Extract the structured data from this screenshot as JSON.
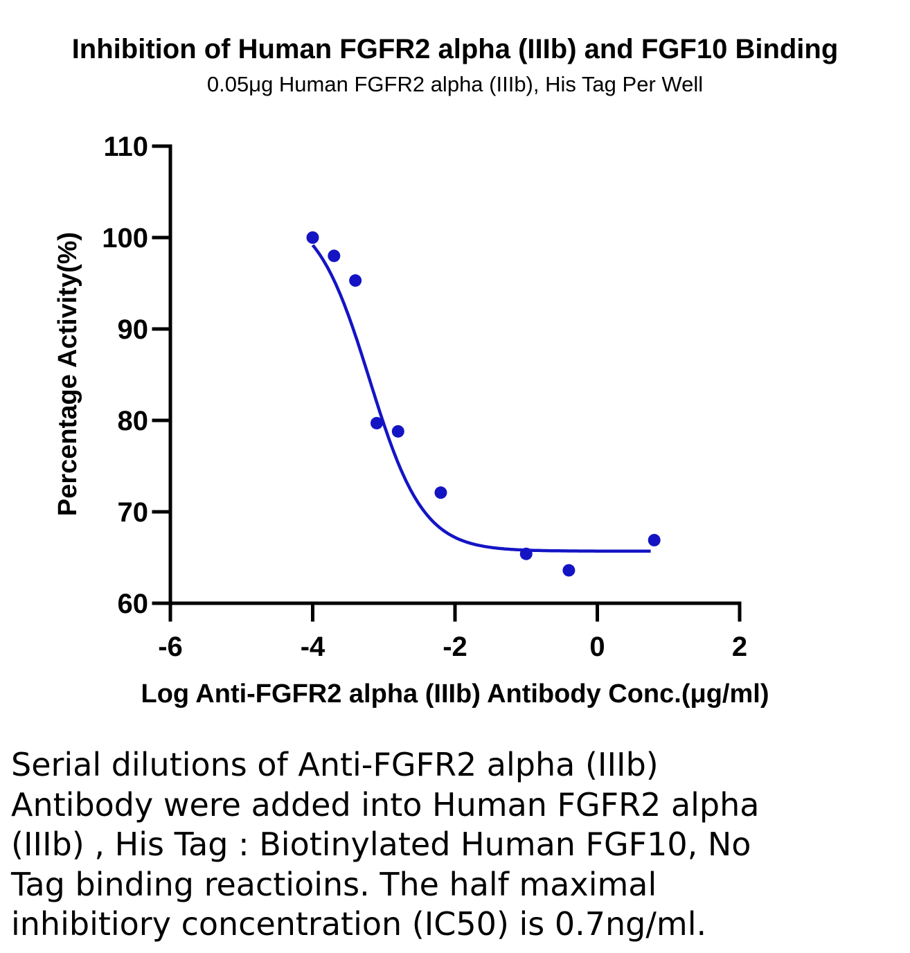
{
  "chart_data": {
    "type": "scatter",
    "title": "Inhibition of Human FGFR2 alpha (IIIb) and  FGF10 Binding",
    "subtitle": "0.05μg Human FGFR2 alpha (IIIb), His Tag Per Well",
    "xlabel": "Log Anti-FGFR2 alpha (IIIb) Antibody Conc.(μg/ml)",
    "ylabel": "Percentage Activity(%)",
    "xlim": [
      -6,
      2
    ],
    "ylim": [
      60,
      110
    ],
    "xticks": [
      -6,
      -4,
      -2,
      0,
      2
    ],
    "yticks": [
      60,
      70,
      80,
      90,
      100,
      110
    ],
    "grid": false,
    "series": [
      {
        "color": "#1414c4",
        "points": [
          {
            "x": -4.0,
            "y": 100.0
          },
          {
            "x": -3.7,
            "y": 98.0
          },
          {
            "x": -3.4,
            "y": 95.3
          },
          {
            "x": -3.1,
            "y": 79.7
          },
          {
            "x": -2.8,
            "y": 78.8
          },
          {
            "x": -2.2,
            "y": 72.1
          },
          {
            "x": -1.0,
            "y": 65.4
          },
          {
            "x": -0.4,
            "y": 63.6
          },
          {
            "x": 0.8,
            "y": 66.9
          }
        ],
        "fit": {
          "model": "four-parameter logistic",
          "bottom": 65.7,
          "top": 103.2,
          "logIC50": -3.2,
          "hillslope": -1.15,
          "x_range": [
            -4.0,
            0.75
          ]
        }
      }
    ]
  },
  "caption": "Serial dilutions of Anti-FGFR2 alpha (IIIb)\nAntibody were added into Human FGFR2 alpha\n(IIIb) , His Tag : Biotinylated Human FGF10, No\nTag binding reactioins. The half maximal\ninhibitiory concentration (IC50) is 0.7ng/ml."
}
